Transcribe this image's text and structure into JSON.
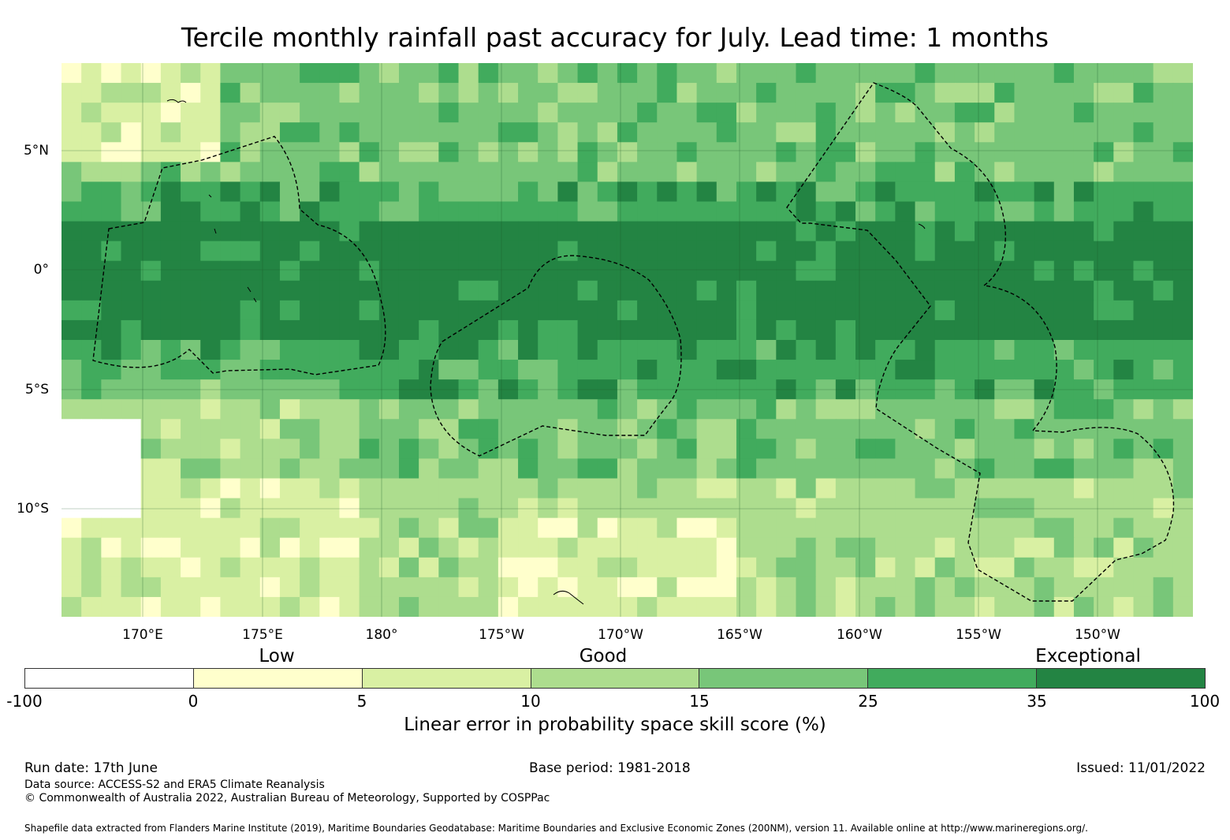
{
  "title": "Tercile monthly rainfall past accuracy for July. Lead time: 1 months",
  "map": {
    "lon_ticks": [
      "170°E",
      "175°E",
      "180°",
      "175°W",
      "170°W",
      "165°W",
      "160°W",
      "155°W",
      "150°W"
    ],
    "lat_ticks": [
      "5°N",
      "0°",
      "5°S",
      "10°S"
    ],
    "grid_cols": 57,
    "grid_rows": 28
  },
  "legend": {
    "categories": [
      "Low",
      "Good",
      "Exceptional"
    ],
    "ticks": [
      "-100",
      "0",
      "5",
      "10",
      "15",
      "25",
      "35",
      "100"
    ],
    "colors": [
      "#ffffff",
      "#ffffcc",
      "#d9f0a3",
      "#addd8e",
      "#78c679",
      "#41ab5d",
      "#238443"
    ],
    "label": "Linear error in probability space skill score (%)"
  },
  "footer": {
    "run_date": "Run date: 17th June",
    "base_period": "Base period: 1981-2018",
    "issued": "Issued: 11/01/2022",
    "data_source": "Data source: ACCESS-S2 and ERA5 Climate Reanalysis",
    "copyright": "© Commonwealth of Australia 2022, Australian Bureau of Meteorology, Supported by COSPPac",
    "shapefile": "Shapefile data extracted from Flanders Marine Institute (2019), Maritime Boundaries Geodatabase: Maritime Boundaries and Exclusive Economic Zones (200NM), version 11. Available online at http://www.marineregions.org/."
  }
}
